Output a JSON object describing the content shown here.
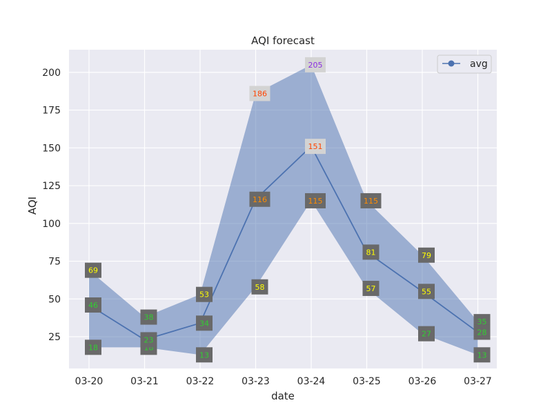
{
  "chart_data": {
    "type": "line",
    "title": "AQI forecast",
    "xlabel": "date",
    "ylabel": "AQI",
    "categories": [
      "03-20",
      "03-21",
      "03-22",
      "03-23",
      "03-24",
      "03-25",
      "03-26",
      "03-27"
    ],
    "ylim": [
      4,
      215
    ],
    "yticks": [
      25,
      50,
      75,
      100,
      125,
      150,
      175,
      200
    ],
    "grid": true,
    "legend_position": "top-right",
    "series": [
      {
        "name": "avg",
        "values": [
          46,
          23,
          34,
          116,
          151,
          81,
          55,
          28
        ],
        "color": "#4c72b0",
        "marker": "circle"
      }
    ],
    "band": {
      "min": [
        18,
        18,
        13,
        58,
        115,
        57,
        27,
        13
      ],
      "max": [
        69,
        38,
        53,
        186,
        205,
        115,
        79,
        35
      ],
      "color": "#4c72b0"
    },
    "label_style": {
      "box_color": "#696969",
      "light_box_color": "#d3d3d3"
    },
    "aqi_level_colors": {
      "good": "#32cd32",
      "moderate": "#ffff00",
      "sensitive": "#ff8c00",
      "unhealthy": "#ff4500",
      "very_unhealthy": "#8a2be2"
    },
    "plot_background": "#eaeaf2"
  }
}
